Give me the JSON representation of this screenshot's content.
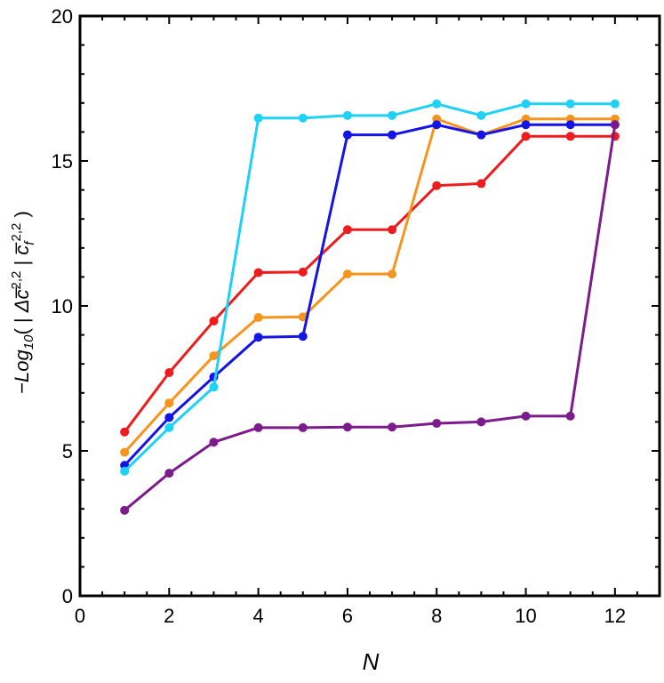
{
  "chart_data": {
    "type": "line",
    "title": "",
    "xlabel": "N",
    "ylabel": {
      "prefix": "−",
      "log": "Log",
      "log_sub": "10",
      "open": "( | ",
      "delta": "Δ",
      "c": "c̅",
      "sup": "2,2",
      "slash": " | ",
      "c2": "c̅",
      "c2_sub": "f",
      "sup2": "2,2",
      "close": " )"
    },
    "xlim": [
      0,
      13
    ],
    "ylim": [
      0,
      20
    ],
    "xticks": [
      0,
      2,
      4,
      6,
      8,
      10,
      12
    ],
    "yticks": [
      0,
      5,
      10,
      15,
      20
    ],
    "grid": false,
    "x": [
      1,
      2,
      3,
      4,
      5,
      6,
      7,
      8,
      9,
      10,
      11,
      12
    ],
    "series": [
      {
        "color": "#ee1c1c",
        "values": [
          5.65,
          7.7,
          9.48,
          11.15,
          11.17,
          12.63,
          12.63,
          14.15,
          14.22,
          15.85,
          15.85,
          15.85
        ]
      },
      {
        "color": "#f7941d",
        "values": [
          4.95,
          6.65,
          8.28,
          9.6,
          9.62,
          11.1,
          11.1,
          16.45,
          15.9,
          16.45,
          16.45,
          16.45
        ]
      },
      {
        "color": "#1414e6",
        "values": [
          4.5,
          6.15,
          7.55,
          8.92,
          8.95,
          15.9,
          15.9,
          16.25,
          15.9,
          16.25,
          16.25,
          16.25
        ]
      },
      {
        "color": "#1ed2f5",
        "values": [
          4.3,
          5.8,
          7.2,
          16.48,
          16.48,
          16.57,
          16.57,
          16.97,
          16.57,
          16.97,
          16.97,
          16.97
        ]
      },
      {
        "color": "#7b1b8c",
        "values": [
          2.95,
          4.23,
          5.3,
          5.8,
          5.8,
          5.82,
          5.82,
          5.95,
          6.0,
          6.2,
          6.2,
          16.25
        ]
      }
    ]
  }
}
